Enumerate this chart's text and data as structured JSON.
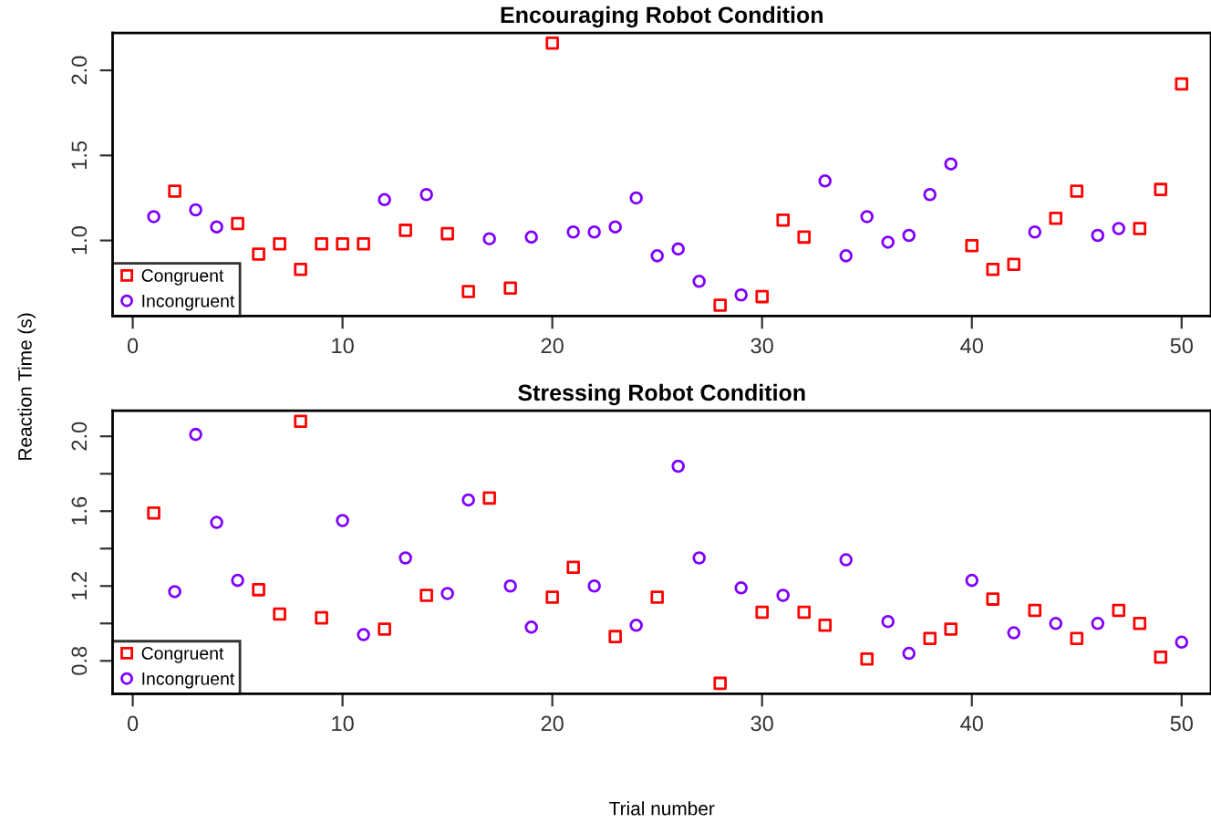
{
  "chart_data": [
    {
      "type": "scatter",
      "title": "Encouraging Robot Condition",
      "ylabel": "Reaction Time (s)",
      "xlim": [
        -0.96,
        51.4
      ],
      "xticks": [
        0,
        10,
        20,
        30,
        40,
        50
      ],
      "ylim": [
        0.556,
        2.22
      ],
      "yticks": [
        {
          "value": 1.0,
          "label": "1.0"
        },
        1.5,
        {
          "value": 2.0,
          "label": "2.0"
        }
      ],
      "legend": "bottom left",
      "grid": false,
      "series": [
        {
          "name": "Congruent",
          "color": "#ff0000",
          "marker": "square",
          "x": [
            2,
            5,
            6,
            7,
            8,
            9,
            10,
            11,
            13,
            15,
            16,
            18,
            20,
            28,
            30,
            31,
            32,
            40,
            41,
            42,
            44,
            45,
            48,
            49,
            50
          ],
          "values": [
            1.29,
            1.1,
            0.92,
            0.98,
            0.83,
            0.98,
            0.98,
            0.98,
            1.06,
            1.04,
            0.7,
            0.72,
            2.16,
            0.62,
            0.67,
            1.12,
            1.02,
            0.97,
            0.83,
            0.86,
            1.13,
            1.29,
            1.07,
            1.3,
            1.92
          ]
        },
        {
          "name": "Incongruent",
          "color": "#7f00ff",
          "marker": "circle",
          "x": [
            1,
            3,
            4,
            12,
            14,
            17,
            19,
            21,
            22,
            23,
            24,
            25,
            26,
            27,
            29,
            33,
            34,
            35,
            36,
            37,
            38,
            39,
            43,
            46,
            47
          ],
          "values": [
            1.14,
            1.18,
            1.08,
            1.24,
            1.27,
            1.01,
            1.02,
            1.05,
            1.05,
            1.08,
            1.25,
            0.91,
            0.95,
            0.76,
            0.68,
            1.35,
            0.91,
            1.14,
            0.99,
            1.03,
            1.27,
            1.45,
            1.05,
            1.03,
            1.07
          ]
        }
      ]
    },
    {
      "type": "scatter",
      "title": "Stressing Robot Condition",
      "xlabel": "Trial number",
      "xlim": [
        -0.96,
        51.4
      ],
      "xticks": [
        0,
        10,
        20,
        30,
        40,
        50
      ],
      "ylim": [
        0.624,
        2.137
      ],
      "yticks": [
        0.8,
        {
          "value": 1.0,
          "label": null
        },
        1.2,
        {
          "value": 1.4,
          "label": null
        },
        1.6,
        {
          "value": 1.8,
          "label": null
        },
        {
          "value": 2.0,
          "label": "2.0"
        }
      ],
      "legend": "bottom left",
      "grid": false,
      "series": [
        {
          "name": "Congruent",
          "color": "#ff0000",
          "marker": "square",
          "x": [
            1,
            6,
            7,
            8,
            9,
            12,
            14,
            17,
            20,
            21,
            23,
            25,
            28,
            30,
            32,
            33,
            35,
            38,
            39,
            41,
            43,
            45,
            47,
            48,
            49
          ],
          "values": [
            1.59,
            1.18,
            1.05,
            2.08,
            1.03,
            0.97,
            1.15,
            1.67,
            1.14,
            1.3,
            0.93,
            1.14,
            0.68,
            1.06,
            1.06,
            0.99,
            0.81,
            0.92,
            0.97,
            1.13,
            1.07,
            0.92,
            1.07,
            1.0,
            0.82
          ]
        },
        {
          "name": "Incongruent",
          "color": "#7f00ff",
          "marker": "circle",
          "x": [
            2,
            3,
            4,
            5,
            10,
            11,
            13,
            15,
            16,
            18,
            19,
            22,
            24,
            26,
            27,
            29,
            31,
            34,
            36,
            37,
            40,
            42,
            44,
            46,
            50
          ],
          "values": [
            1.17,
            2.01,
            1.54,
            1.23,
            1.55,
            0.94,
            1.35,
            1.16,
            1.66,
            1.2,
            0.98,
            1.2,
            0.99,
            1.84,
            1.35,
            1.19,
            1.15,
            1.34,
            1.01,
            0.84,
            1.23,
            0.95,
            1.0,
            1.0,
            0.9
          ]
        }
      ]
    }
  ]
}
